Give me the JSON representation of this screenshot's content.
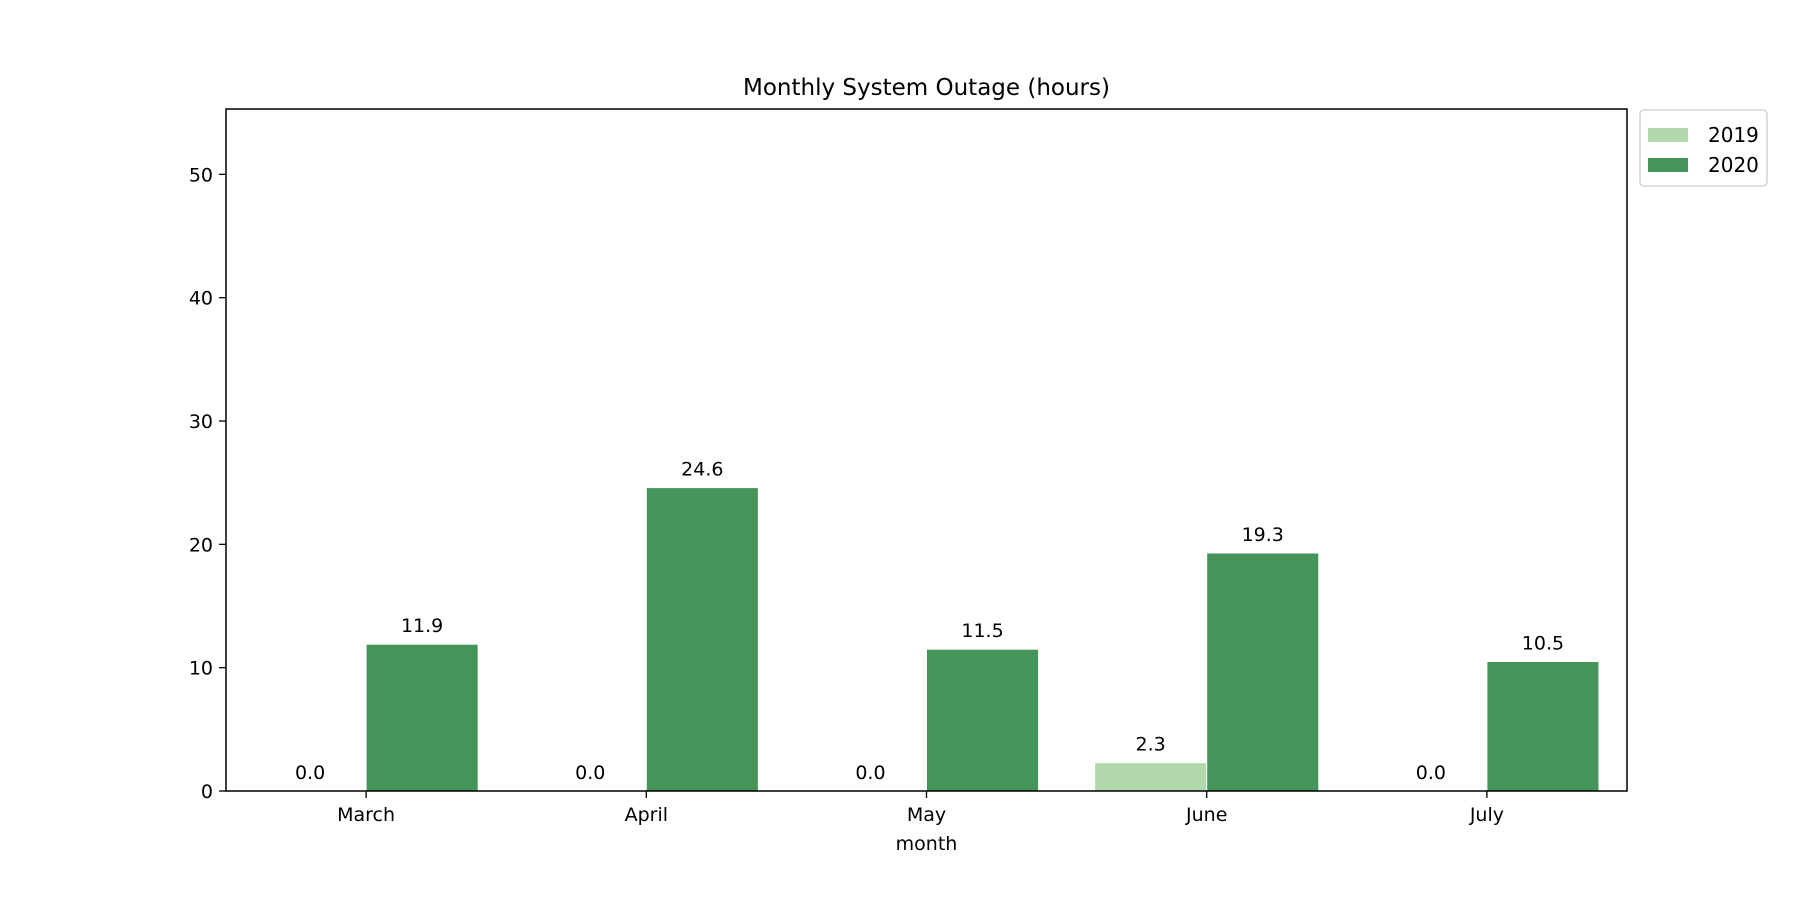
{
  "chart_data": {
    "type": "bar",
    "title": "Monthly System Outage (hours)",
    "xlabel": "month",
    "ylabel": "",
    "categories": [
      "March",
      "April",
      "May",
      "June",
      "July"
    ],
    "series": [
      {
        "name": "2019",
        "color": "#b2d9ab",
        "values": [
          0.0,
          0.0,
          0.0,
          2.3,
          0.0
        ]
      },
      {
        "name": "2020",
        "color": "#45945a",
        "values": [
          11.9,
          24.6,
          11.5,
          19.3,
          10.5
        ]
      }
    ],
    "value_labels": [
      [
        "0.0",
        "0.0",
        "0.0",
        "2.3",
        "0.0"
      ],
      [
        "11.9",
        "24.6",
        "11.5",
        "19.3",
        "10.5"
      ]
    ],
    "ylim": [
      0,
      55.3
    ],
    "yticks": [
      0,
      10,
      20,
      30,
      40,
      50
    ],
    "ytick_labels": [
      "0",
      "10",
      "20",
      "30",
      "40",
      "50"
    ],
    "grid": false,
    "legend_position": "outside-top-right"
  }
}
